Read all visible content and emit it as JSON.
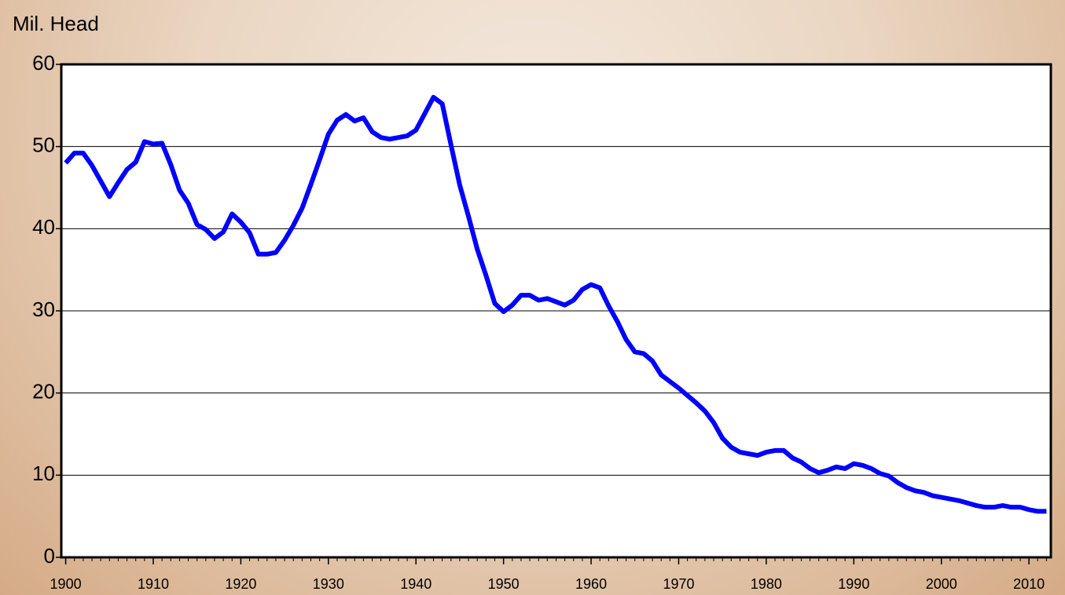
{
  "chart_data": {
    "type": "line",
    "y_axis_label": "Mil. Head",
    "x": [
      1900,
      1901,
      1902,
      1903,
      1904,
      1905,
      1906,
      1907,
      1908,
      1909,
      1910,
      1911,
      1912,
      1913,
      1914,
      1915,
      1916,
      1917,
      1918,
      1919,
      1920,
      1921,
      1922,
      1923,
      1924,
      1925,
      1926,
      1927,
      1928,
      1929,
      1930,
      1931,
      1932,
      1933,
      1934,
      1935,
      1936,
      1937,
      1938,
      1939,
      1940,
      1941,
      1942,
      1943,
      1944,
      1945,
      1946,
      1947,
      1948,
      1949,
      1950,
      1951,
      1952,
      1953,
      1954,
      1955,
      1956,
      1957,
      1958,
      1959,
      1960,
      1961,
      1962,
      1963,
      1964,
      1965,
      1966,
      1967,
      1968,
      1969,
      1970,
      1971,
      1972,
      1973,
      1974,
      1975,
      1976,
      1977,
      1978,
      1979,
      1980,
      1981,
      1982,
      1983,
      1984,
      1985,
      1986,
      1987,
      1988,
      1989,
      1990,
      1991,
      1992,
      1993,
      1994,
      1995,
      1996,
      1997,
      1998,
      1999,
      2000,
      2001,
      2002,
      2003,
      2004,
      2005,
      2006,
      2007,
      2008,
      2009,
      2010,
      2011,
      2012
    ],
    "series": [
      {
        "color": "#0000ff",
        "values": [
          48.0,
          49.2,
          49.2,
          47.7,
          45.8,
          43.9,
          45.6,
          47.2,
          48.1,
          50.6,
          50.3,
          50.4,
          47.8,
          44.7,
          43.1,
          40.5,
          39.9,
          38.8,
          39.6,
          41.8,
          40.8,
          39.5,
          36.9,
          36.9,
          37.1,
          38.6,
          40.4,
          42.5,
          45.4,
          48.4,
          51.5,
          53.2,
          53.9,
          53.1,
          53.5,
          51.8,
          51.1,
          50.9,
          51.1,
          51.3,
          52.0,
          54.0,
          56.0,
          55.2,
          50.2,
          45.3,
          41.5,
          37.5,
          34.3,
          30.9,
          29.9,
          30.7,
          31.9,
          31.9,
          31.3,
          31.5,
          31.1,
          30.7,
          31.3,
          32.6,
          33.2,
          32.8,
          30.6,
          28.7,
          26.5,
          25.0,
          24.8,
          23.9,
          22.2,
          21.4,
          20.6,
          19.7,
          18.8,
          17.8,
          16.4,
          14.5,
          13.4,
          12.8,
          12.6,
          12.4,
          12.8,
          13.0,
          13.0,
          12.1,
          11.6,
          10.8,
          10.3,
          10.6,
          11.0,
          10.8,
          11.4,
          11.2,
          10.8,
          10.2,
          9.9,
          9.1,
          8.5,
          8.1,
          7.9,
          7.5,
          7.3,
          7.1,
          6.9,
          6.6,
          6.3,
          6.1,
          6.1,
          6.3,
          6.1,
          6.1,
          5.8,
          5.6,
          5.6
        ]
      }
    ],
    "xlim": [
      1899.5,
      2012.5
    ],
    "xticks": [
      1900,
      1910,
      1920,
      1930,
      1940,
      1950,
      1960,
      1970,
      1980,
      1990,
      2000,
      2010
    ],
    "ylim": [
      0,
      60
    ],
    "yticks": [
      0,
      10,
      20,
      30,
      40,
      50,
      60
    ],
    "grid": true
  }
}
